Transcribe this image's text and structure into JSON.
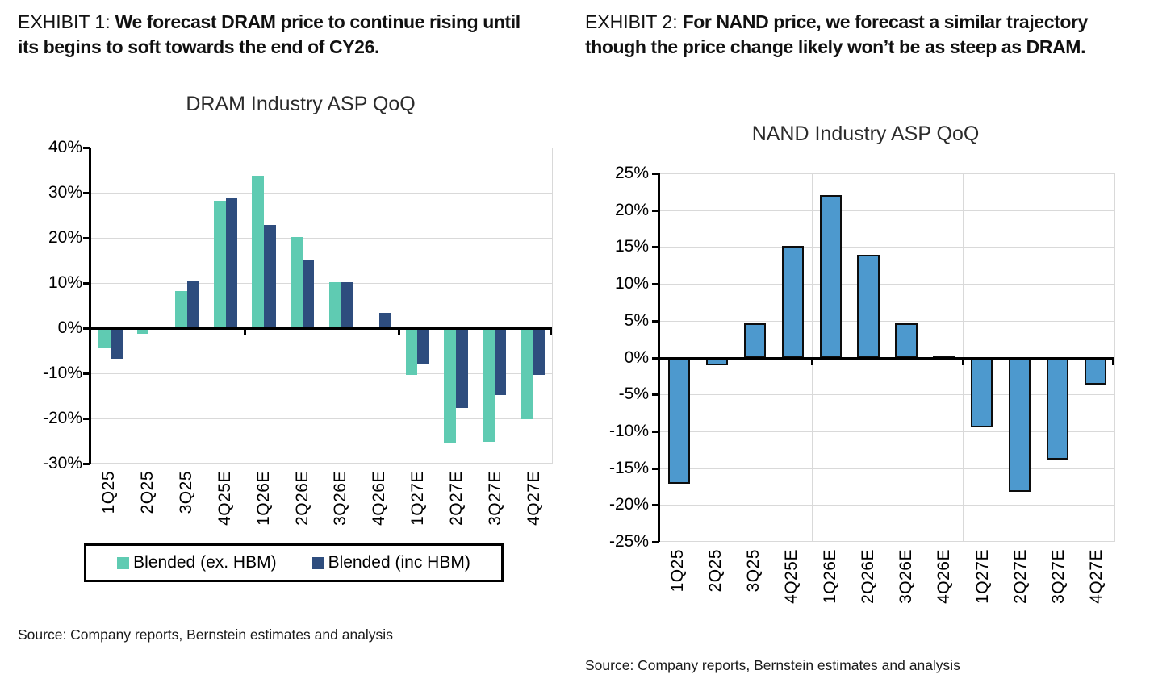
{
  "left_panel": {
    "exhibit_label": "EXHIBIT 1:",
    "exhibit_title": "We forecast DRAM price to continue rising until its begins to soft towards the end of CY26.",
    "source": "Source: Company reports, Bernstein estimates and analysis"
  },
  "right_panel": {
    "exhibit_label": "EXHIBIT 2:",
    "exhibit_title": "For NAND price, we forecast a similar trajectory though the price change likely won’t be as steep as DRAM.",
    "source": "Source: Company reports, Bernstein estimates and analysis"
  },
  "chart_data": [
    {
      "type": "bar",
      "title": "DRAM Industry ASP QoQ",
      "categories": [
        "1Q25",
        "2Q25",
        "3Q25",
        "4Q25E",
        "1Q26E",
        "2Q26E",
        "3Q26E",
        "4Q26E",
        "1Q27E",
        "2Q27E",
        "3Q27E",
        "4Q27E"
      ],
      "series": [
        {
          "name": "Blended (ex. HBM)",
          "color": "#5FCBB2",
          "values": [
            -4.5,
            -1.2,
            8.2,
            28.2,
            33.7,
            20.2,
            10.2,
            0,
            -10.4,
            -25.3,
            -25.1,
            -20.2
          ]
        },
        {
          "name": "Blended (inc HBM)",
          "color": "#2E4D7E",
          "values": [
            -6.8,
            0.3,
            10.5,
            28.8,
            22.9,
            15.2,
            10.2,
            3.4,
            -8.0,
            -17.6,
            -14.8,
            -10.4
          ]
        }
      ],
      "ylabel_format": "percent",
      "ylim": [
        -30,
        40
      ],
      "ytick_step": 10,
      "grid": true,
      "year_dividers_after": [
        3,
        7
      ],
      "legend_position": "bottom",
      "bar_width_frac": 0.31,
      "bar_border": false
    },
    {
      "type": "bar",
      "title": "NAND Industry ASP QoQ",
      "categories": [
        "1Q25",
        "2Q25",
        "3Q25",
        "4Q25E",
        "1Q26E",
        "2Q26E",
        "3Q26E",
        "4Q26E",
        "1Q27E",
        "2Q27E",
        "3Q27E",
        "4Q27E"
      ],
      "series": [
        {
          "name": "",
          "color": "#4D99CE",
          "values": [
            -17.1,
            -1.0,
            4.6,
            15.2,
            22.1,
            14.0,
            4.6,
            0.2,
            -9.5,
            -18.2,
            -13.8,
            -3.7
          ]
        }
      ],
      "ylabel_format": "percent",
      "ylim": [
        -25,
        25
      ],
      "ytick_step": 5,
      "grid": true,
      "year_dividers_after": [
        3,
        7
      ],
      "legend_position": "none",
      "bar_width_frac": 0.58,
      "bar_border": true
    }
  ]
}
